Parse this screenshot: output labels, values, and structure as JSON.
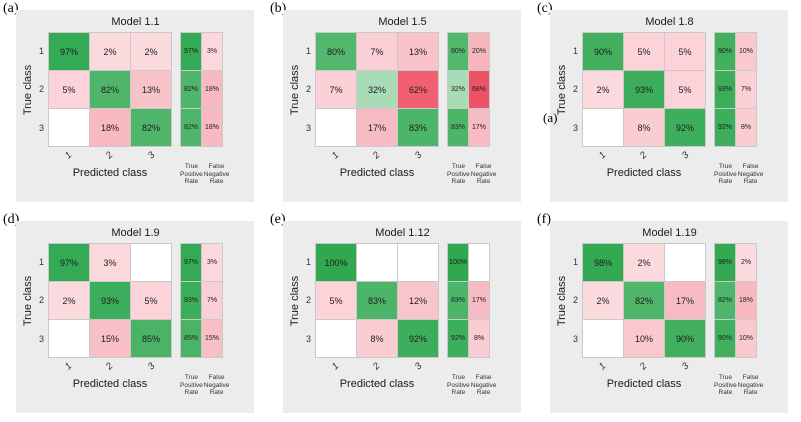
{
  "colors": {
    "correct_green": "#2fa84f",
    "incorrect_red": "#e8112d",
    "panel_background": "#ececec"
  },
  "summary_headers": [
    [
      "True",
      "Positive",
      "Rate"
    ],
    [
      "False",
      "Negative",
      "Rate"
    ]
  ],
  "chart_data": [
    {
      "type": "heatmap",
      "panel_label": "(a)",
      "title": "Model 1.1",
      "xlabel": "Predicted class",
      "ylabel": "True class",
      "x_ticks": [
        "1",
        "2",
        "3"
      ],
      "y_ticks": [
        "1",
        "2",
        "3"
      ],
      "matrix": [
        [
          97,
          2,
          2
        ],
        [
          5,
          82,
          13
        ],
        [
          null,
          18,
          82
        ]
      ],
      "column_summary": {
        "true_positive_rate": [
          97,
          82,
          82
        ],
        "false_negative_rate": [
          3,
          18,
          18
        ]
      }
    },
    {
      "type": "heatmap",
      "panel_label": "(b)",
      "title": "Model 1.5",
      "xlabel": "Predicted class",
      "ylabel": "True class",
      "x_ticks": [
        "1",
        "2",
        "3"
      ],
      "y_ticks": [
        "1",
        "2",
        "3"
      ],
      "matrix": [
        [
          80,
          7,
          13
        ],
        [
          7,
          32,
          62
        ],
        [
          null,
          17,
          83
        ]
      ],
      "column_summary": {
        "true_positive_rate": [
          80,
          32,
          83
        ],
        "false_negative_rate": [
          20,
          68,
          17
        ]
      }
    },
    {
      "type": "heatmap",
      "panel_label": "(c)",
      "stray_label": "(a)",
      "title": "Model 1.8",
      "xlabel": "Predicted class",
      "ylabel": "True class",
      "x_ticks": [
        "1",
        "2",
        "3"
      ],
      "y_ticks": [
        "1",
        "2",
        "3"
      ],
      "matrix": [
        [
          90,
          5,
          5
        ],
        [
          2,
          93,
          5
        ],
        [
          null,
          8,
          92
        ]
      ],
      "column_summary": {
        "true_positive_rate": [
          90,
          93,
          92
        ],
        "false_negative_rate": [
          10,
          7,
          8
        ]
      }
    },
    {
      "type": "heatmap",
      "panel_label": "(d)",
      "title": "Model 1.9",
      "xlabel": "Predicted class",
      "ylabel": "True class",
      "x_ticks": [
        "1",
        "2",
        "3"
      ],
      "y_ticks": [
        "1",
        "2",
        "3"
      ],
      "matrix": [
        [
          97,
          3,
          null
        ],
        [
          2,
          93,
          5
        ],
        [
          null,
          15,
          85
        ]
      ],
      "column_summary": {
        "true_positive_rate": [
          97,
          93,
          85
        ],
        "false_negative_rate": [
          3,
          7,
          15
        ]
      }
    },
    {
      "type": "heatmap",
      "panel_label": "(e)",
      "title": "Model 1.12",
      "xlabel": "Predicted class",
      "ylabel": "True class",
      "x_ticks": [
        "1",
        "2",
        "3"
      ],
      "y_ticks": [
        "1",
        "2",
        "3"
      ],
      "matrix": [
        [
          100,
          null,
          null
        ],
        [
          5,
          83,
          12
        ],
        [
          null,
          8,
          92
        ]
      ],
      "column_summary": {
        "true_positive_rate": [
          100,
          83,
          92
        ],
        "false_negative_rate": [
          null,
          17,
          8
        ]
      }
    },
    {
      "type": "heatmap",
      "panel_label": "(f)",
      "title": "Model 1.19",
      "xlabel": "Predicted class",
      "ylabel": "True class",
      "x_ticks": [
        "1",
        "2",
        "3"
      ],
      "y_ticks": [
        "1",
        "2",
        "3"
      ],
      "matrix": [
        [
          98,
          2,
          null
        ],
        [
          2,
          82,
          17
        ],
        [
          null,
          10,
          90
        ]
      ],
      "column_summary": {
        "true_positive_rate": [
          98,
          82,
          90
        ],
        "false_negative_rate": [
          2,
          18,
          10
        ]
      }
    }
  ]
}
